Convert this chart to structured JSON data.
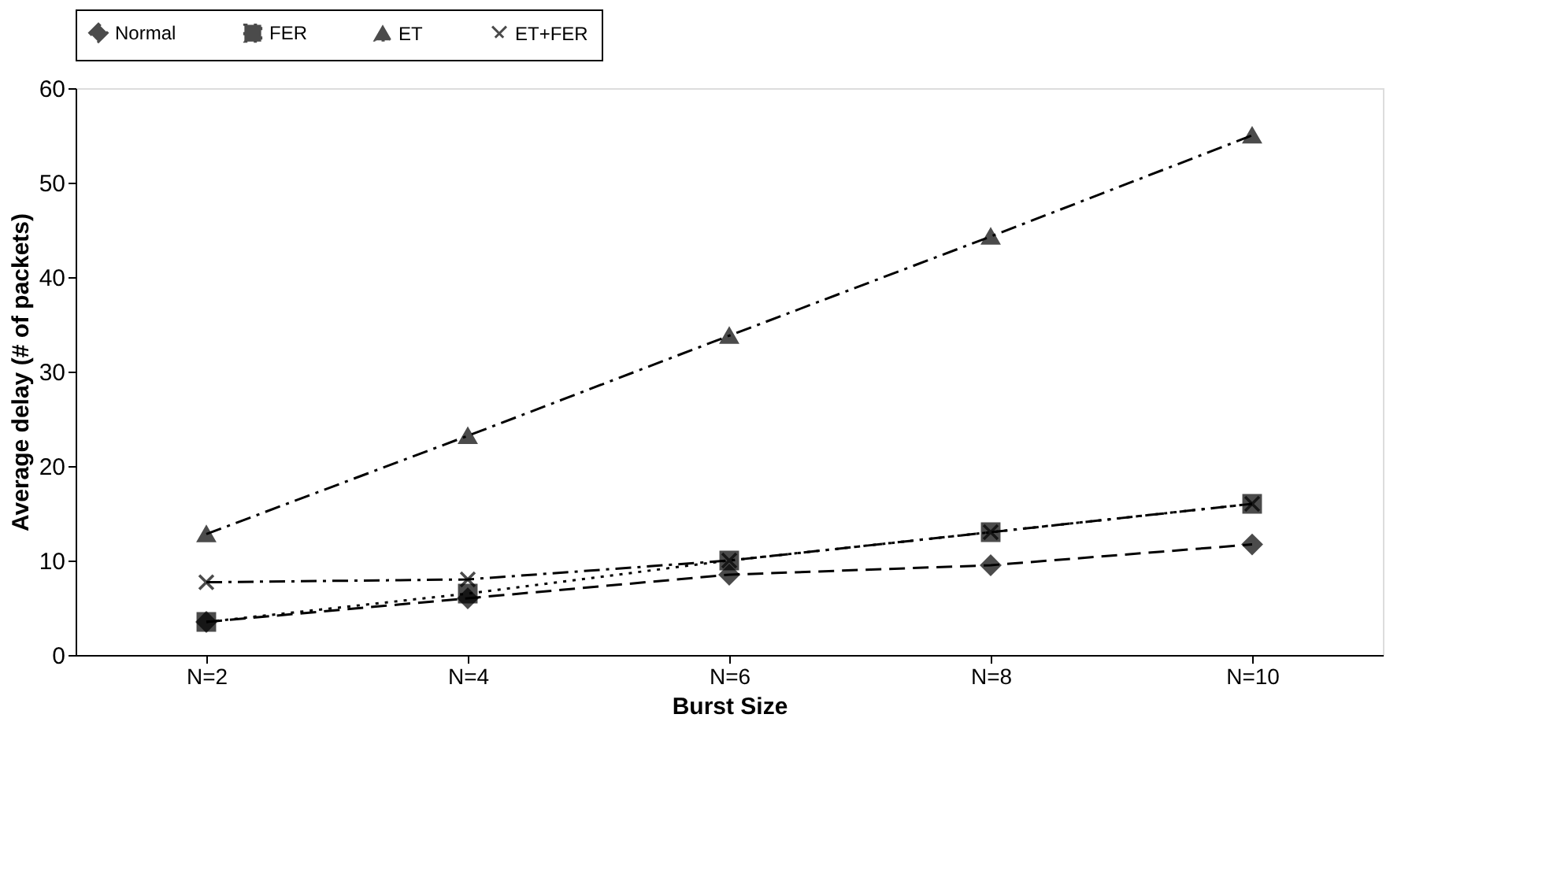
{
  "chart_data": {
    "type": "line",
    "xlabel": "Burst Size",
    "ylabel": "Average delay (# of packets)",
    "categories": [
      "N=2",
      "N=4",
      "N=6",
      "N=8",
      "N=10"
    ],
    "series": [
      {
        "name": "Normal",
        "color": "#000000",
        "line_style": "dashed",
        "marker": "diamond",
        "values": [
          3.5,
          6,
          8.5,
          9.5,
          11.7
        ]
      },
      {
        "name": "FER",
        "color": "#000000",
        "line_style": "dotted",
        "marker": "square",
        "values": [
          3.5,
          6.5,
          10,
          13,
          16
        ]
      },
      {
        "name": "ET",
        "color": "#000000",
        "line_style": "dashdot",
        "marker": "triangle",
        "values": [
          12.8,
          23.2,
          33.8,
          44.3,
          55
        ]
      },
      {
        "name": "ET+FER",
        "color": "#000000",
        "line_style": "dashdot",
        "marker": "cross",
        "values": [
          7.7,
          8,
          10,
          13,
          16
        ]
      }
    ],
    "ylim": [
      0,
      60
    ],
    "yticks": [
      0,
      10,
      20,
      30,
      40,
      50,
      60
    ],
    "grid": false,
    "legend": "top"
  }
}
